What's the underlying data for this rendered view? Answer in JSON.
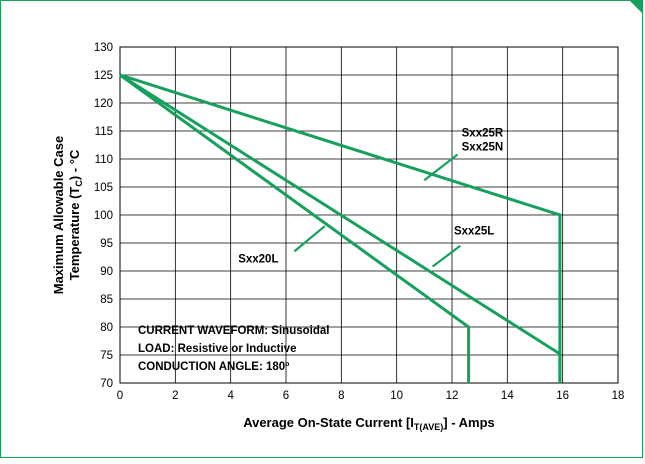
{
  "chart_data": {
    "type": "line",
    "xlabel": {
      "main": "Average On-State Current [I",
      "sub": "T(AVE)",
      "tail": "] - Amps"
    },
    "ylabel": {
      "line1": "Maximum Allowable Case",
      "line2_main": "Temperature (T",
      "line2_sub": "C",
      "line2_tail": ") - °C"
    },
    "xlim": [
      0,
      18
    ],
    "ylim": [
      70,
      130
    ],
    "x_ticks": [
      0,
      2,
      4,
      6,
      8,
      10,
      12,
      14,
      16,
      18
    ],
    "y_ticks": [
      70,
      75,
      80,
      85,
      90,
      95,
      100,
      105,
      110,
      115,
      120,
      125,
      130
    ],
    "grid": true,
    "line_color": "#17a05d",
    "series": [
      {
        "name": "Sxx25R\nSxx25N",
        "points": [
          [
            0,
            125
          ],
          [
            15.9,
            100
          ],
          [
            15.9,
            70
          ]
        ]
      },
      {
        "name": "Sxx25L",
        "points": [
          [
            0,
            125
          ],
          [
            15.9,
            75.2
          ],
          [
            15.9,
            70
          ]
        ]
      },
      {
        "name": "Sxx20L",
        "points": [
          [
            0,
            125
          ],
          [
            12.6,
            80
          ],
          [
            12.6,
            70
          ]
        ]
      }
    ],
    "labels": [
      {
        "series": 0,
        "lines": [
          "Sxx25R",
          "Sxx25N"
        ],
        "text_at": [
          13.1,
          114
        ],
        "leader_from": [
          12.2,
          110.8
        ],
        "leader_to": [
          11.0,
          106.2
        ]
      },
      {
        "series": 1,
        "lines": [
          "Sxx25L"
        ],
        "text_at": [
          12.8,
          96.5
        ],
        "leader_from": [
          12.3,
          94.5
        ],
        "leader_to": [
          11.3,
          90.8
        ]
      },
      {
        "series": 2,
        "lines": [
          "Sxx20L"
        ],
        "text_at": [
          5.0,
          91.5
        ],
        "leader_from": [
          6.3,
          93.5
        ],
        "leader_to": [
          7.4,
          98.0
        ]
      }
    ],
    "annotations": [
      "CURRENT WAVEFORM: Sinusoidal",
      "LOAD: Resistive or Inductive",
      "CONDUCTION ANGLE: 180º"
    ]
  }
}
